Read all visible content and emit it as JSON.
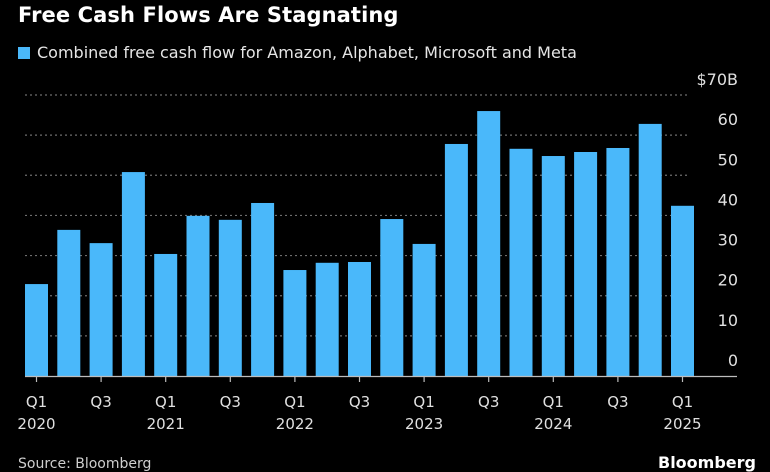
{
  "header": {
    "title": "Free Cash Flows Are Stagnating"
  },
  "legend": {
    "label": "Combined free cash flow for Amazon, Alphabet, Microsoft and Meta",
    "color": "#4ab8fa"
  },
  "footer": {
    "source": "Source: Bloomberg",
    "brand": "Bloomberg"
  },
  "colors": {
    "bar": "#4ab8fa",
    "background": "#000000",
    "grid": "#6e6e6e",
    "axis": "#bdbdbd"
  },
  "chart_data": {
    "type": "bar",
    "title": "Free Cash Flows Are Stagnating",
    "xlabel": "",
    "ylabel": "",
    "unit_label": "$70B",
    "ylim": [
      0,
      70
    ],
    "yticks": [
      0,
      10,
      20,
      30,
      40,
      50,
      60,
      70
    ],
    "ytick_labels": [
      "0",
      "10",
      "20",
      "30",
      "40",
      "50",
      "60",
      "$70B"
    ],
    "y_axis_side": "right",
    "grid": true,
    "legend_position": "top-left",
    "categories": [
      "Q1 2020",
      "Q2 2020",
      "Q3 2020",
      "Q4 2020",
      "Q1 2021",
      "Q2 2021",
      "Q3 2021",
      "Q4 2021",
      "Q1 2022",
      "Q2 2022",
      "Q3 2022",
      "Q4 2022",
      "Q1 2023",
      "Q2 2023",
      "Q3 2023",
      "Q4 2023",
      "Q1 2024",
      "Q2 2024",
      "Q3 2024",
      "Q4 2024",
      "Q1 2025"
    ],
    "series": [
      {
        "name": "Combined free cash flow for Amazon, Alphabet, Microsoft and Meta",
        "values": [
          22.9,
          36.4,
          33.1,
          50.8,
          30.4,
          39.9,
          38.9,
          43.1,
          26.4,
          28.2,
          28.4,
          39.1,
          32.9,
          57.8,
          66.0,
          56.6,
          54.8,
          55.8,
          56.8,
          62.8,
          42.4
        ]
      }
    ],
    "xtick_labels": [
      {
        "index": 0,
        "line1": "Q1",
        "line2": "2020"
      },
      {
        "index": 2,
        "line1": "Q3",
        "line2": ""
      },
      {
        "index": 4,
        "line1": "Q1",
        "line2": "2021"
      },
      {
        "index": 6,
        "line1": "Q3",
        "line2": ""
      },
      {
        "index": 8,
        "line1": "Q1",
        "line2": "2022"
      },
      {
        "index": 10,
        "line1": "Q3",
        "line2": ""
      },
      {
        "index": 12,
        "line1": "Q1",
        "line2": "2023"
      },
      {
        "index": 14,
        "line1": "Q3",
        "line2": ""
      },
      {
        "index": 16,
        "line1": "Q1",
        "line2": "2024"
      },
      {
        "index": 18,
        "line1": "Q3",
        "line2": ""
      },
      {
        "index": 20,
        "line1": "Q1",
        "line2": "2025"
      }
    ]
  }
}
